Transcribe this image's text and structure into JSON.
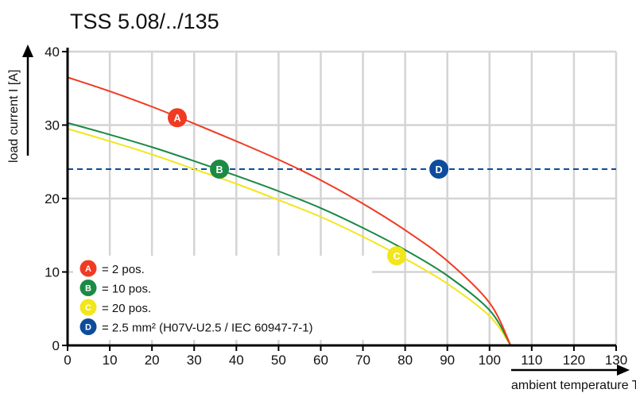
{
  "chart_data": {
    "type": "line",
    "title": "TSS 5.08/../135",
    "xlabel": "ambient temperature T [°C]",
    "ylabel": "load current I [A]",
    "xlim": [
      0,
      130
    ],
    "ylim": [
      0,
      40
    ],
    "xticks": [
      0,
      10,
      20,
      30,
      40,
      50,
      60,
      70,
      80,
      90,
      100,
      110,
      120,
      130
    ],
    "yticks": [
      0,
      10,
      20,
      30,
      40
    ],
    "grid": true,
    "legend_position": "bottom-left",
    "x": [
      0,
      10,
      20,
      30,
      40,
      50,
      60,
      70,
      80,
      90,
      100,
      105
    ],
    "series": [
      {
        "marker": "A",
        "name": "= 2 pos.",
        "color": "#f03a24",
        "values": [
          36.5,
          34.6,
          32.5,
          30.2,
          27.8,
          25.3,
          22.5,
          19.3,
          15.7,
          11.5,
          5.8,
          0
        ],
        "label_at": [
          26,
          31
        ]
      },
      {
        "marker": "B",
        "name": "= 10 pos.",
        "color": "#1b8a45",
        "values": [
          30.3,
          28.7,
          27.0,
          25.1,
          23.1,
          21.0,
          18.7,
          16.0,
          13.0,
          9.5,
          4.8,
          0
        ],
        "label_at": [
          36,
          24
        ]
      },
      {
        "marker": "C",
        "name": "= 20 pos.",
        "color": "#f2e61c",
        "values": [
          29.5,
          27.8,
          26.0,
          24.0,
          22.0,
          19.8,
          17.5,
          14.8,
          11.8,
          8.4,
          4.0,
          0
        ],
        "label_at": [
          78,
          12.2
        ]
      },
      {
        "marker": "D",
        "name": "= 2.5 mm² (H07V-U2.5 / IEC 60947-7-1)",
        "color": "#0d4c9c",
        "dashed": true,
        "constant": 24,
        "label_at": [
          88,
          24
        ]
      }
    ]
  }
}
